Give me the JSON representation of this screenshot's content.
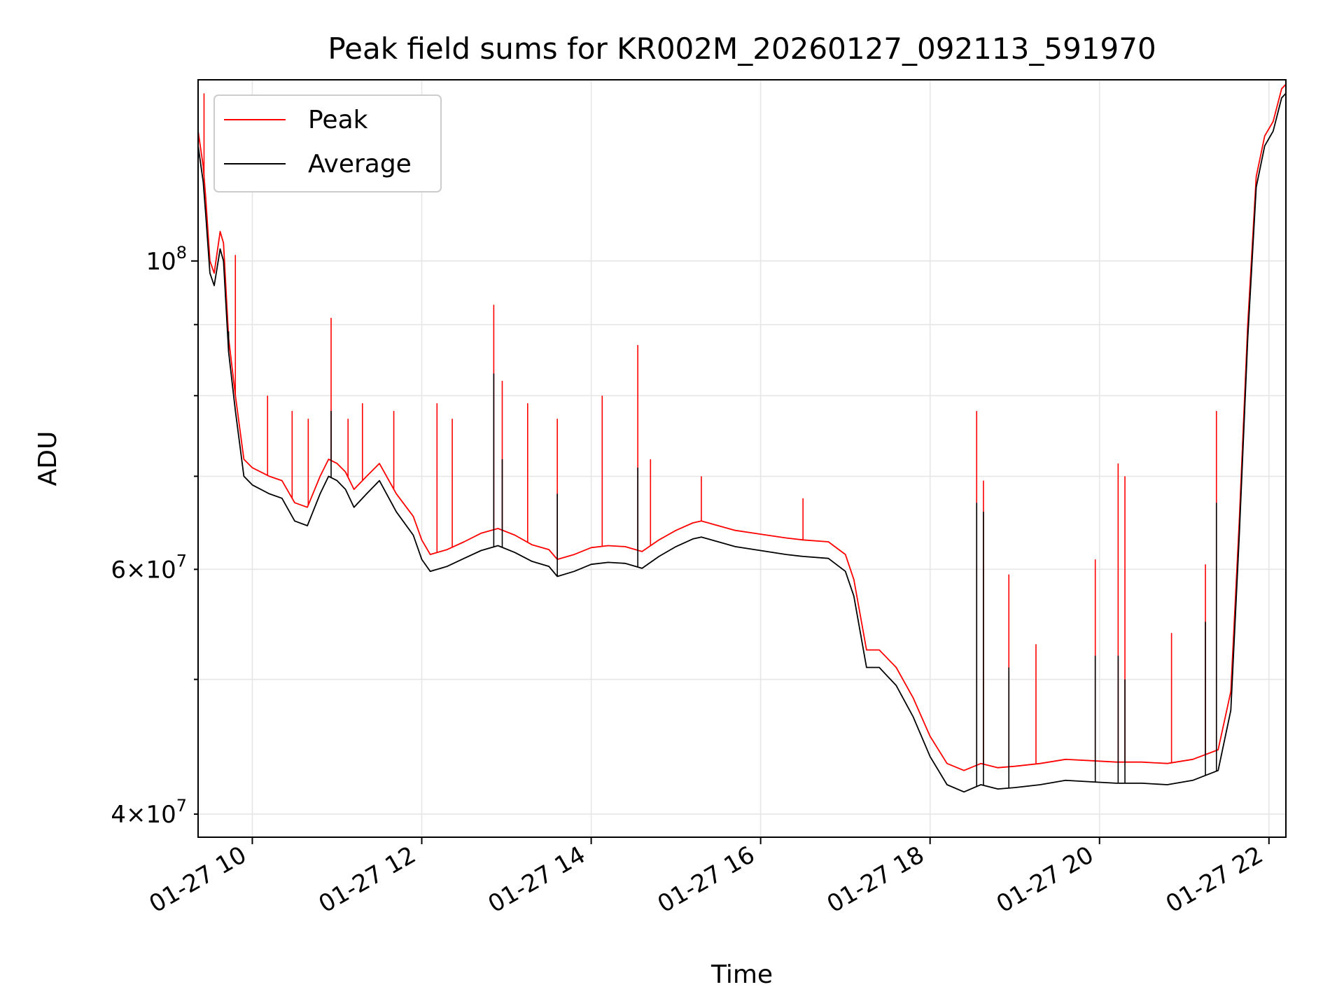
{
  "chart_data": {
    "type": "line",
    "title": "Peak field sums for KR002M_20260127_092113_591970",
    "xlabel": "Time",
    "ylabel": "ADU",
    "xscale": "time",
    "yscale": "log",
    "xlim": [
      9.36,
      22.2
    ],
    "ylim": [
      38500000,
      135000000
    ],
    "grid": true,
    "legend_position": "top-left",
    "x_ticks": [
      {
        "value": 10,
        "label": "01-27 10"
      },
      {
        "value": 12,
        "label": "01-27 12"
      },
      {
        "value": 14,
        "label": "01-27 14"
      },
      {
        "value": 16,
        "label": "01-27 16"
      },
      {
        "value": 18,
        "label": "01-27 18"
      },
      {
        "value": 20,
        "label": "01-27 20"
      },
      {
        "value": 22,
        "label": "01-27 22"
      }
    ],
    "y_ticks_major": [
      {
        "value": 100000000,
        "base": "10",
        "exp": "8"
      }
    ],
    "y_ticks_minor": [
      {
        "value": 40000000,
        "mantissa": "4",
        "base": "10",
        "exp": "7",
        "labeled": true
      },
      {
        "value": 50000000,
        "labeled": false
      },
      {
        "value": 60000000,
        "mantissa": "6",
        "base": "10",
        "exp": "7",
        "labeled": true
      },
      {
        "value": 70000000,
        "labeled": false
      },
      {
        "value": 80000000,
        "labeled": false
      },
      {
        "value": 90000000,
        "labeled": false
      }
    ],
    "times_symbol": "×",
    "series": [
      {
        "name": "Peak",
        "color": "#ff0000",
        "x": [
          9.36,
          9.42,
          9.45,
          9.5,
          9.55,
          9.62,
          9.66,
          9.72,
          9.8,
          9.9,
          10.0,
          10.2,
          10.35,
          10.5,
          10.65,
          10.8,
          10.9,
          11.0,
          11.1,
          11.2,
          11.35,
          11.5,
          11.7,
          11.9,
          12.0,
          12.1,
          12.3,
          12.5,
          12.7,
          12.9,
          13.1,
          13.3,
          13.5,
          13.6,
          13.8,
          14.0,
          14.2,
          14.4,
          14.6,
          14.8,
          15.0,
          15.2,
          15.3,
          15.5,
          15.7,
          16.0,
          16.3,
          16.5,
          16.8,
          17.0,
          17.1,
          17.25,
          17.4,
          17.6,
          17.8,
          18.0,
          18.2,
          18.4,
          18.6,
          18.8,
          19.0,
          19.3,
          19.6,
          19.9,
          20.2,
          20.5,
          20.8,
          21.1,
          21.4,
          21.55,
          21.65,
          21.75,
          21.85,
          21.95,
          22.05,
          22.15,
          22.2
        ],
        "values": [
          124000000,
          117000000,
          111000000,
          100000000,
          98000000,
          105000000,
          103000000,
          88000000,
          80000000,
          72000000,
          71000000,
          70000000,
          69500000,
          67000000,
          66500000,
          70000000,
          72000000,
          71500000,
          70500000,
          68500000,
          70000000,
          71500000,
          68000000,
          65500000,
          63000000,
          61500000,
          62000000,
          62800000,
          63700000,
          64200000,
          63500000,
          62500000,
          62000000,
          61000000,
          61500000,
          62200000,
          62400000,
          62300000,
          61800000,
          63000000,
          64000000,
          64800000,
          65000000,
          64500000,
          64000000,
          63600000,
          63200000,
          63000000,
          62800000,
          61500000,
          59000000,
          52500000,
          52500000,
          51000000,
          48500000,
          45500000,
          43500000,
          43000000,
          43500000,
          43200000,
          43300000,
          43500000,
          43800000,
          43700000,
          43600000,
          43600000,
          43500000,
          43800000,
          44500000,
          49000000,
          65000000,
          90000000,
          115000000,
          123000000,
          126000000,
          133000000,
          134000000
        ],
        "spikes": [
          {
            "x": 9.43,
            "value": 132000000
          },
          {
            "x": 9.8,
            "value": 101000000
          },
          {
            "x": 10.18,
            "value": 80000000
          },
          {
            "x": 10.47,
            "value": 78000000
          },
          {
            "x": 10.66,
            "value": 77000000
          },
          {
            "x": 10.93,
            "value": 91000000
          },
          {
            "x": 11.13,
            "value": 77000000
          },
          {
            "x": 11.3,
            "value": 79000000
          },
          {
            "x": 11.67,
            "value": 78000000
          },
          {
            "x": 12.18,
            "value": 79000000
          },
          {
            "x": 12.36,
            "value": 77000000
          },
          {
            "x": 12.85,
            "value": 93000000
          },
          {
            "x": 12.95,
            "value": 82000000
          },
          {
            "x": 13.25,
            "value": 79000000
          },
          {
            "x": 13.6,
            "value": 77000000
          },
          {
            "x": 14.13,
            "value": 80000000
          },
          {
            "x": 14.55,
            "value": 87000000
          },
          {
            "x": 14.7,
            "value": 72000000
          },
          {
            "x": 15.3,
            "value": 70000000
          },
          {
            "x": 16.5,
            "value": 67500000
          },
          {
            "x": 18.55,
            "value": 78000000
          },
          {
            "x": 18.63,
            "value": 69500000
          },
          {
            "x": 18.93,
            "value": 59500000
          },
          {
            "x": 19.25,
            "value": 53000000
          },
          {
            "x": 19.95,
            "value": 61000000
          },
          {
            "x": 20.22,
            "value": 71500000
          },
          {
            "x": 20.3,
            "value": 70000000
          },
          {
            "x": 20.85,
            "value": 54000000
          },
          {
            "x": 21.25,
            "value": 60500000
          },
          {
            "x": 21.38,
            "value": 78000000
          }
        ]
      },
      {
        "name": "Average",
        "color": "#000000",
        "x": [
          9.36,
          9.42,
          9.45,
          9.5,
          9.55,
          9.62,
          9.66,
          9.72,
          9.8,
          9.9,
          10.0,
          10.2,
          10.35,
          10.5,
          10.65,
          10.8,
          10.9,
          11.0,
          11.1,
          11.2,
          11.35,
          11.5,
          11.7,
          11.9,
          12.0,
          12.1,
          12.3,
          12.5,
          12.7,
          12.9,
          13.1,
          13.3,
          13.5,
          13.6,
          13.8,
          14.0,
          14.2,
          14.4,
          14.6,
          14.8,
          15.0,
          15.2,
          15.3,
          15.5,
          15.7,
          16.0,
          16.3,
          16.5,
          16.8,
          17.0,
          17.1,
          17.25,
          17.4,
          17.6,
          17.8,
          18.0,
          18.2,
          18.4,
          18.6,
          18.8,
          19.0,
          19.3,
          19.6,
          19.9,
          20.2,
          20.5,
          20.8,
          21.1,
          21.4,
          21.55,
          21.65,
          21.75,
          21.85,
          21.95,
          22.05,
          22.15,
          22.2
        ],
        "values": [
          121000000,
          114000000,
          108000000,
          98000000,
          96000000,
          102000000,
          100000000,
          86000000,
          78000000,
          70000000,
          69000000,
          68000000,
          67500000,
          65000000,
          64500000,
          68000000,
          70000000,
          69500000,
          68500000,
          66500000,
          68000000,
          69500000,
          66000000,
          63500000,
          61000000,
          59800000,
          60300000,
          61100000,
          61900000,
          62400000,
          61700000,
          60800000,
          60300000,
          59300000,
          59800000,
          60500000,
          60700000,
          60600000,
          60100000,
          61300000,
          62300000,
          63100000,
          63300000,
          62800000,
          62300000,
          61900000,
          61500000,
          61300000,
          61100000,
          59800000,
          57400000,
          51000000,
          51000000,
          49500000,
          47000000,
          44000000,
          42000000,
          41500000,
          42000000,
          41700000,
          41800000,
          42000000,
          42300000,
          42200000,
          42100000,
          42100000,
          42000000,
          42300000,
          43000000,
          47500000,
          63500000,
          88000000,
          113000000,
          121000000,
          124000000,
          131000000,
          132000000
        ],
        "spikes": [
          {
            "x": 9.72,
            "value": 89000000
          },
          {
            "x": 10.93,
            "value": 78000000
          },
          {
            "x": 12.85,
            "value": 83000000
          },
          {
            "x": 12.95,
            "value": 72000000
          },
          {
            "x": 13.6,
            "value": 68000000
          },
          {
            "x": 14.55,
            "value": 71000000
          },
          {
            "x": 18.55,
            "value": 67000000
          },
          {
            "x": 18.63,
            "value": 66000000
          },
          {
            "x": 18.93,
            "value": 51000000
          },
          {
            "x": 19.95,
            "value": 52000000
          },
          {
            "x": 20.22,
            "value": 52000000
          },
          {
            "x": 20.3,
            "value": 50000000
          },
          {
            "x": 21.25,
            "value": 55000000
          },
          {
            "x": 21.38,
            "value": 67000000
          }
        ]
      }
    ]
  }
}
